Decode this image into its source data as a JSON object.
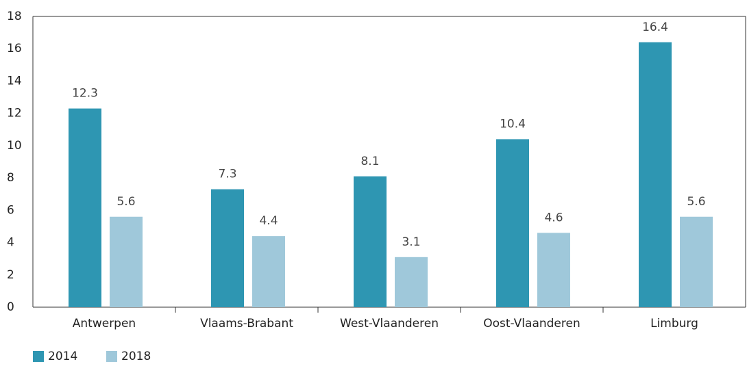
{
  "chart_data": {
    "type": "bar",
    "categories": [
      "Antwerpen",
      "Vlaams-Brabant",
      "West-Vlaanderen",
      "Oost-Vlaanderen",
      "Limburg"
    ],
    "series": [
      {
        "name": "2014",
        "color": "#2e96b2",
        "values": [
          12.3,
          7.3,
          8.1,
          10.4,
          16.4
        ]
      },
      {
        "name": "2018",
        "color": "#9fc8da",
        "values": [
          5.6,
          4.4,
          3.1,
          4.6,
          5.6
        ]
      }
    ],
    "ylim": [
      0,
      18
    ],
    "yticks": [
      0,
      2,
      4,
      6,
      8,
      10,
      12,
      14,
      16,
      18
    ],
    "grid": false,
    "legend": "bottom-left"
  }
}
